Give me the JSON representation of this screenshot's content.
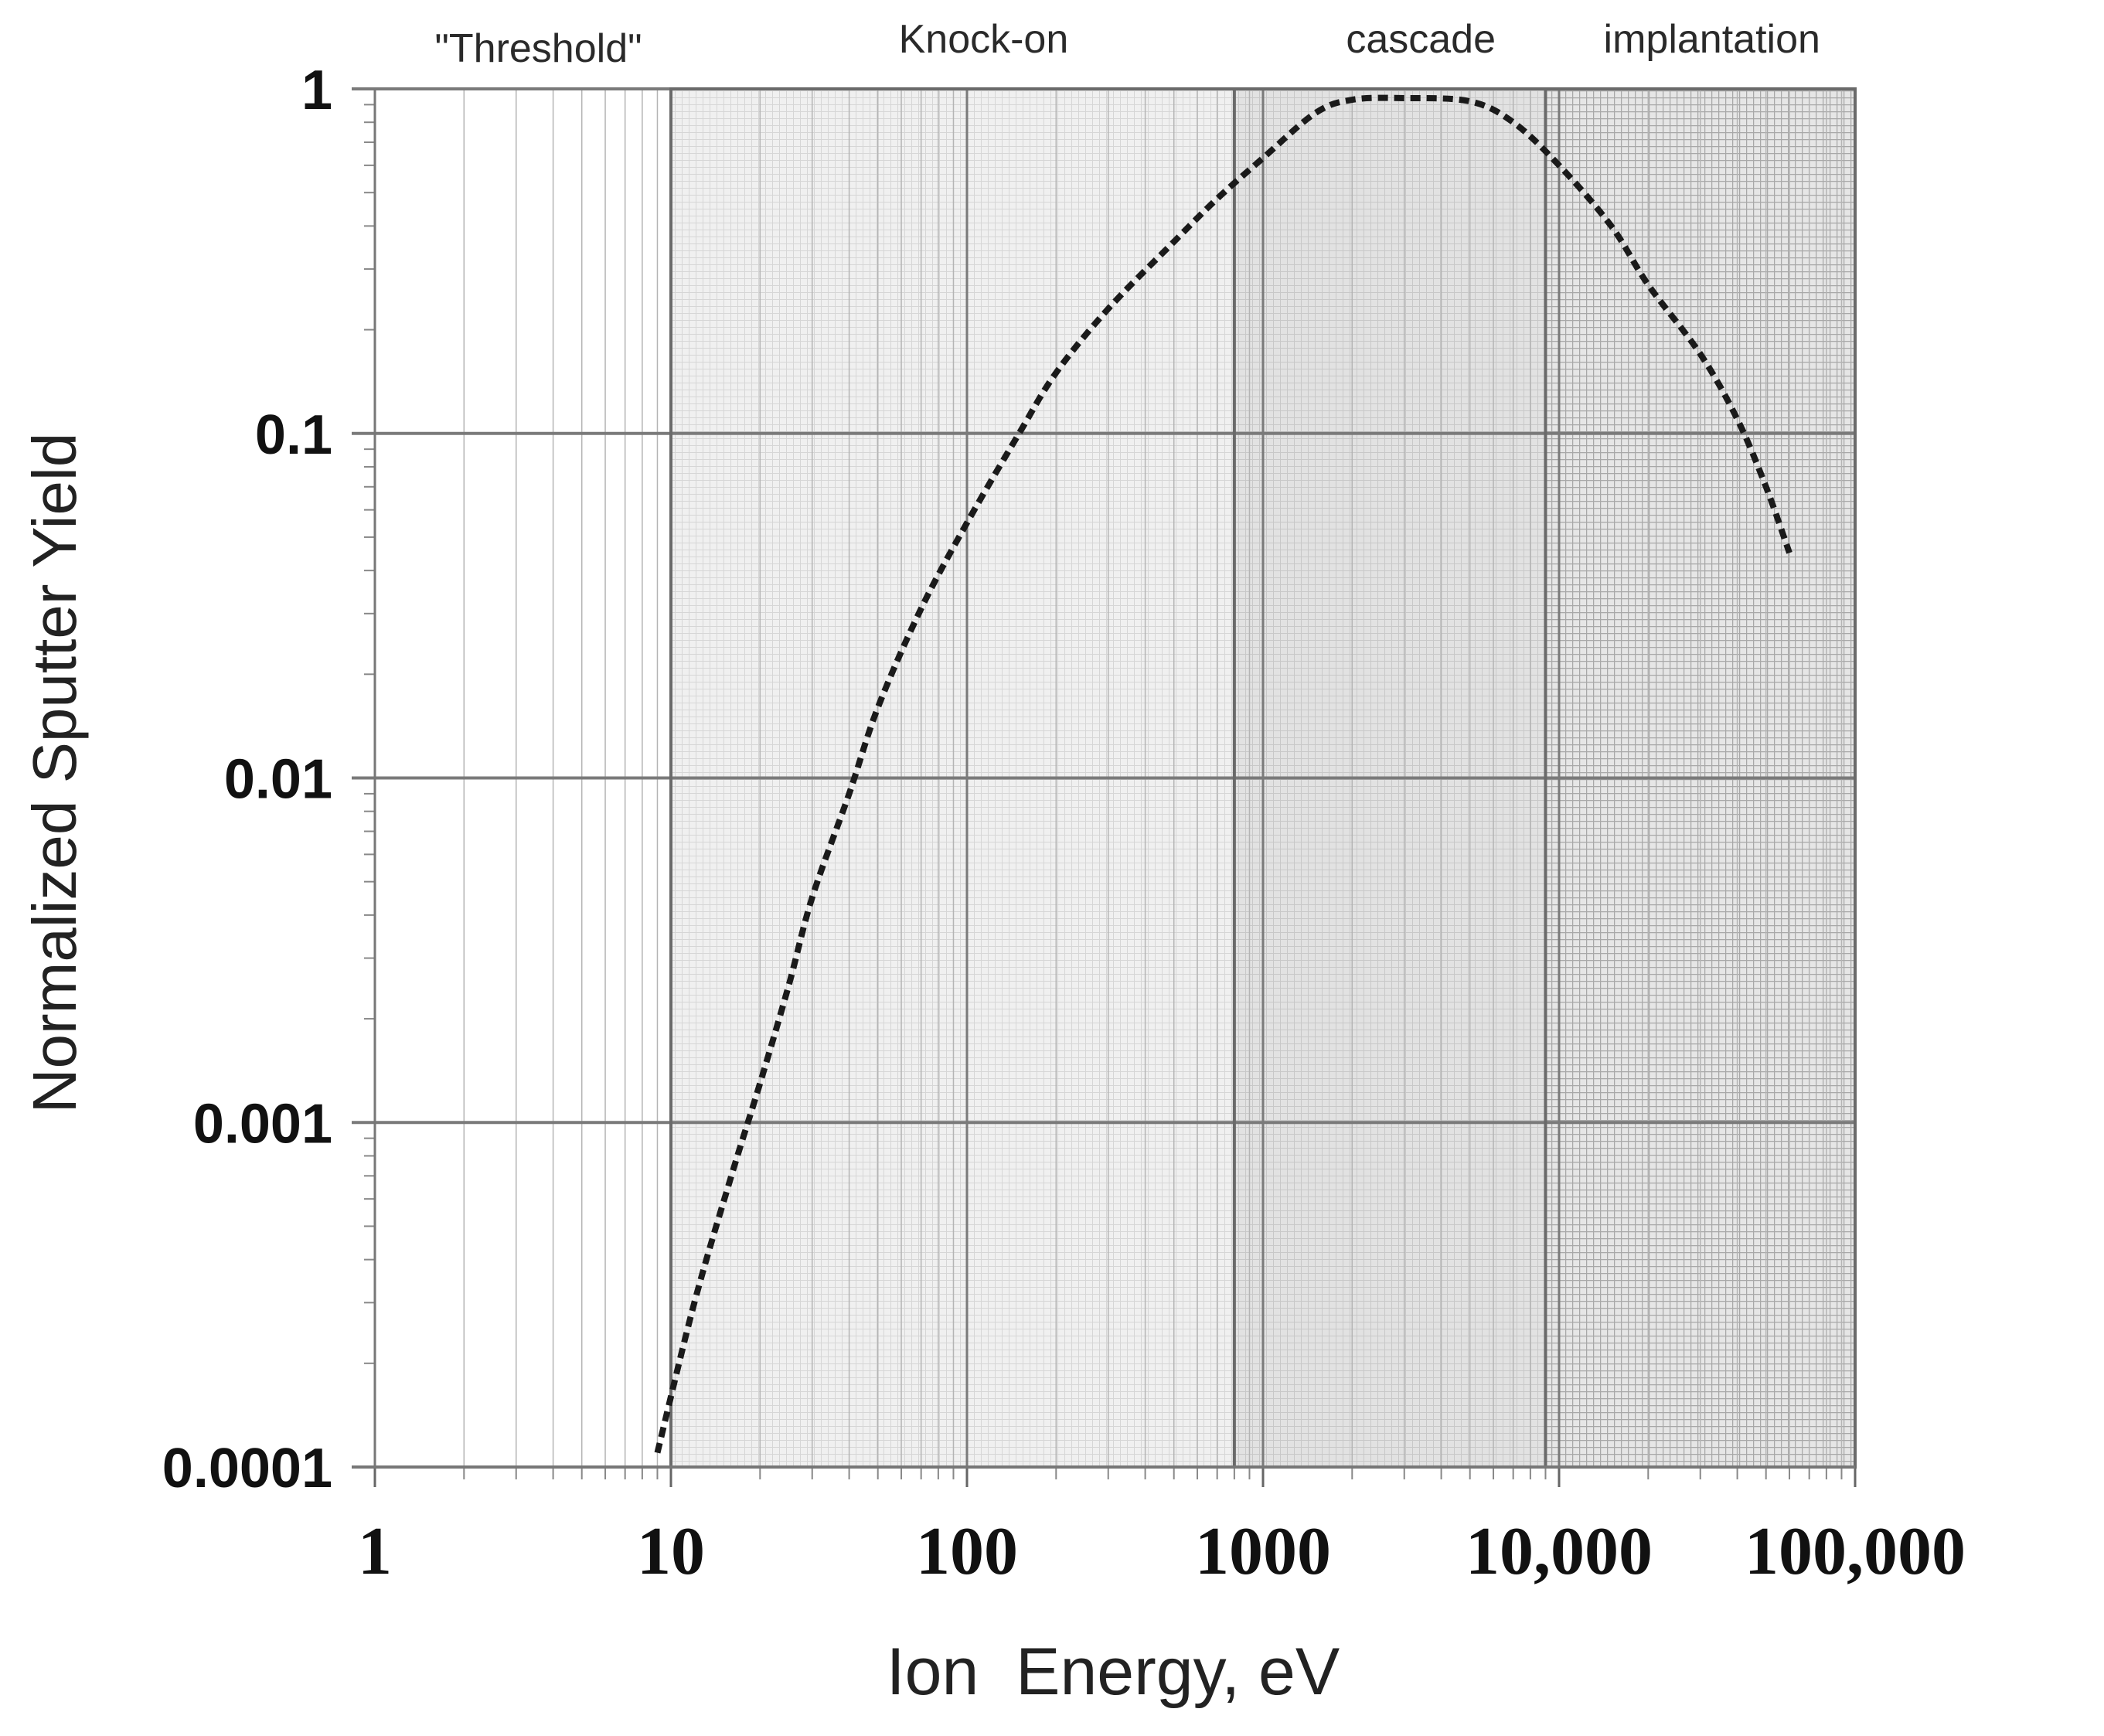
{
  "chart_data": {
    "type": "line",
    "title": "",
    "xlabel": "Ion  Energy, eV",
    "ylabel": "Normalized Sputter Yield",
    "xscale": "log",
    "yscale": "log",
    "xlim": [
      1,
      100000
    ],
    "ylim": [
      0.0001,
      1
    ],
    "x_ticks": [
      {
        "value": 1,
        "label": "1"
      },
      {
        "value": 10,
        "label": "10"
      },
      {
        "value": 100,
        "label": "100"
      },
      {
        "value": 1000,
        "label": "1000"
      },
      {
        "value": 10000,
        "label": "10,000"
      },
      {
        "value": 100000,
        "label": "100,000"
      }
    ],
    "y_ticks": [
      {
        "value": 1,
        "label": "1"
      },
      {
        "value": 0.1,
        "label": "0.1"
      },
      {
        "value": 0.01,
        "label": "0.01"
      },
      {
        "value": 0.001,
        "label": "0.001"
      },
      {
        "value": 0.0001,
        "label": "0.0001"
      }
    ],
    "grid": true,
    "regions": [
      {
        "name": "\"Threshold\"",
        "x_range": [
          1,
          10
        ],
        "shade": "none"
      },
      {
        "name": "Knock-on",
        "x_range": [
          10,
          800
        ],
        "shade": "light"
      },
      {
        "name": "cascade",
        "x_range": [
          800,
          9000
        ],
        "shade": "medium"
      },
      {
        "name": "implantation",
        "x_range": [
          9000,
          100000
        ],
        "shade": "dark"
      }
    ],
    "series": [
      {
        "name": "Normalized Sputter Yield",
        "style": "dashed",
        "x": [
          9,
          12,
          16,
          20,
          25,
          30,
          40,
          50,
          70,
          100,
          150,
          200,
          300,
          500,
          700,
          1000,
          1500,
          2000,
          3000,
          5000,
          7000,
          10000,
          15000,
          20000,
          30000,
          40000,
          50000,
          60000
        ],
        "y": [
          0.00011,
          0.0003,
          0.0007,
          0.0013,
          0.0025,
          0.0045,
          0.009,
          0.016,
          0.031,
          0.055,
          0.1,
          0.15,
          0.23,
          0.36,
          0.48,
          0.63,
          0.85,
          0.93,
          0.94,
          0.92,
          0.8,
          0.6,
          0.4,
          0.27,
          0.17,
          0.11,
          0.07,
          0.045
        ]
      }
    ]
  }
}
